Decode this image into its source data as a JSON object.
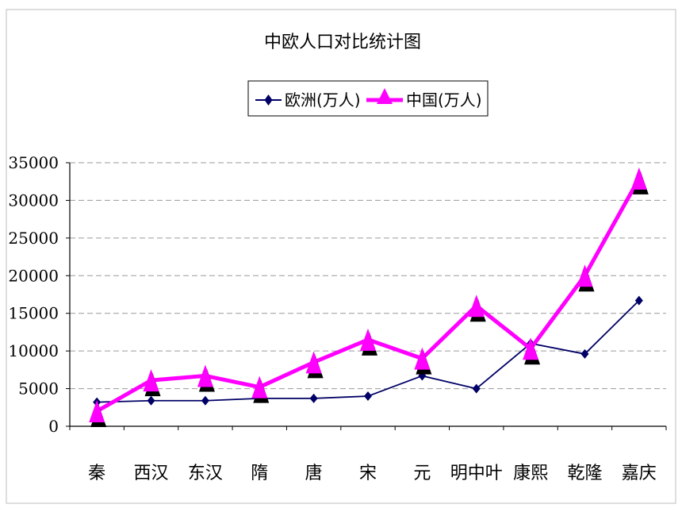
{
  "chart_data": {
    "type": "line",
    "title": "中欧人口对比统计图",
    "xlabel": "",
    "ylabel": "",
    "categories": [
      "秦",
      "西汉",
      "东汉",
      "隋",
      "唐",
      "宋",
      "元",
      "明中叶",
      "康熙",
      "乾隆",
      "嘉庆"
    ],
    "ylim": [
      0,
      35000
    ],
    "yticks": [
      0,
      5000,
      10000,
      15000,
      20000,
      25000,
      30000,
      35000
    ],
    "grid": true,
    "legend_position": "top-center",
    "series": [
      {
        "name": "欧洲(万人)",
        "color": "#000066",
        "marker": "diamond",
        "values": [
          3200,
          3400,
          3400,
          3700,
          3700,
          4000,
          6700,
          5000,
          11000,
          9600,
          16700
        ]
      },
      {
        "name": "中国(万人)",
        "color": "#FF00FF",
        "marker": "triangle",
        "values": [
          2000,
          6100,
          6700,
          5200,
          8500,
          11500,
          9000,
          16000,
          10300,
          20000,
          32900
        ]
      }
    ]
  }
}
